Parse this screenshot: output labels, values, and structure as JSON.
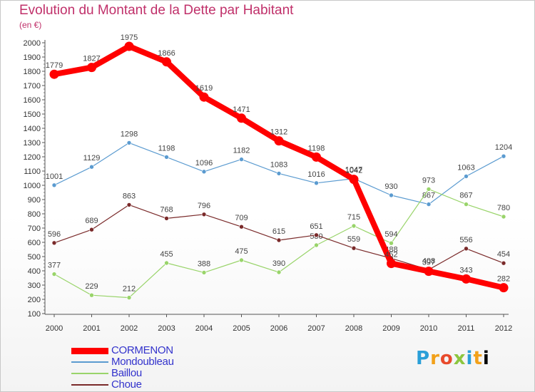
{
  "chart_data": {
    "type": "line",
    "title": "Evolution du Montant de la Dette par Habitant",
    "subtitle": "(en €)",
    "x": [
      "2000",
      "2001",
      "2002",
      "2003",
      "2004",
      "2005",
      "2006",
      "2007",
      "2008",
      "2009",
      "2010",
      "2011",
      "2012"
    ],
    "ylim": [
      100,
      2000
    ],
    "yticks": [
      100,
      200,
      300,
      400,
      500,
      600,
      700,
      800,
      900,
      1000,
      1100,
      1200,
      1300,
      1400,
      1500,
      1600,
      1700,
      1800,
      1900,
      2000
    ],
    "grid": false,
    "legend_position": "bottom-left",
    "series": [
      {
        "name": "CORMENON",
        "color": "#ff0000",
        "width": 8,
        "values": [
          1779,
          1827,
          1975,
          1866,
          1619,
          1471,
          1312,
          1198,
          1042,
          452,
          397,
          343,
          282
        ]
      },
      {
        "name": "Mondoubleau",
        "color": "#5b9bd0",
        "width": 1.2,
        "values": [
          1001,
          1129,
          1298,
          1198,
          1096,
          1182,
          1083,
          1016,
          1047,
          930,
          867,
          1063,
          1204
        ]
      },
      {
        "name": "Baillou",
        "color": "#99d46a",
        "width": 1.2,
        "values": [
          377,
          229,
          212,
          455,
          388,
          475,
          390,
          580,
          715,
          594,
          973,
          867,
          780
        ]
      },
      {
        "name": "Choue",
        "color": "#7a2a2a",
        "width": 1.2,
        "values": [
          596,
          689,
          863,
          768,
          796,
          709,
          615,
          651,
          559,
          488,
          408,
          556,
          454
        ]
      }
    ]
  },
  "legend": {
    "items": [
      {
        "label": "CORMENON",
        "color": "#ff0000",
        "text_color": "#3333cc"
      },
      {
        "label": "Mondoubleau",
        "color": "#5b9bd0",
        "text_color": "#3333cc"
      },
      {
        "label": "Baillou",
        "color": "#99d46a",
        "text_color": "#3333cc"
      },
      {
        "label": "Choue",
        "color": "#7a2a2a",
        "text_color": "#3333cc"
      }
    ]
  },
  "logo": {
    "letters": [
      "P",
      "r",
      "o",
      "x",
      "i",
      "t",
      "i"
    ]
  }
}
